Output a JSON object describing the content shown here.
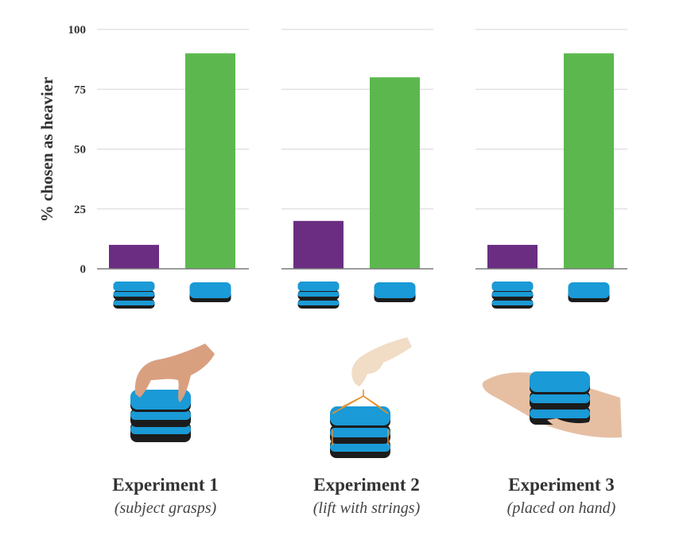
{
  "chart_data": {
    "type": "bar",
    "ylabel": "% chosen as heavier",
    "ylim": [
      0,
      100
    ],
    "yticks": [
      0,
      25,
      50,
      75,
      100
    ],
    "grid": true,
    "colors": {
      "three_block_stack": "#6b2d82",
      "single_block": "#5cb84e",
      "block_blue": "#1a9ad6",
      "block_band": "#1c1c1c",
      "string": "#e8902a"
    },
    "panels": [
      {
        "title": "Experiment  1",
        "subtitle": "(subject grasps)",
        "values": [
          10,
          90
        ],
        "icon": "hand-grasping-stack"
      },
      {
        "title": "Experiment  2",
        "subtitle": "(lift with strings)",
        "values": [
          20,
          80
        ],
        "icon": "hand-lifting-strings"
      },
      {
        "title": "Experiment  3",
        "subtitle": "(placed on hand)",
        "values": [
          10,
          90
        ],
        "icon": "stack-on-open-palm"
      }
    ],
    "categories": [
      "three-block stack",
      "single block"
    ]
  }
}
